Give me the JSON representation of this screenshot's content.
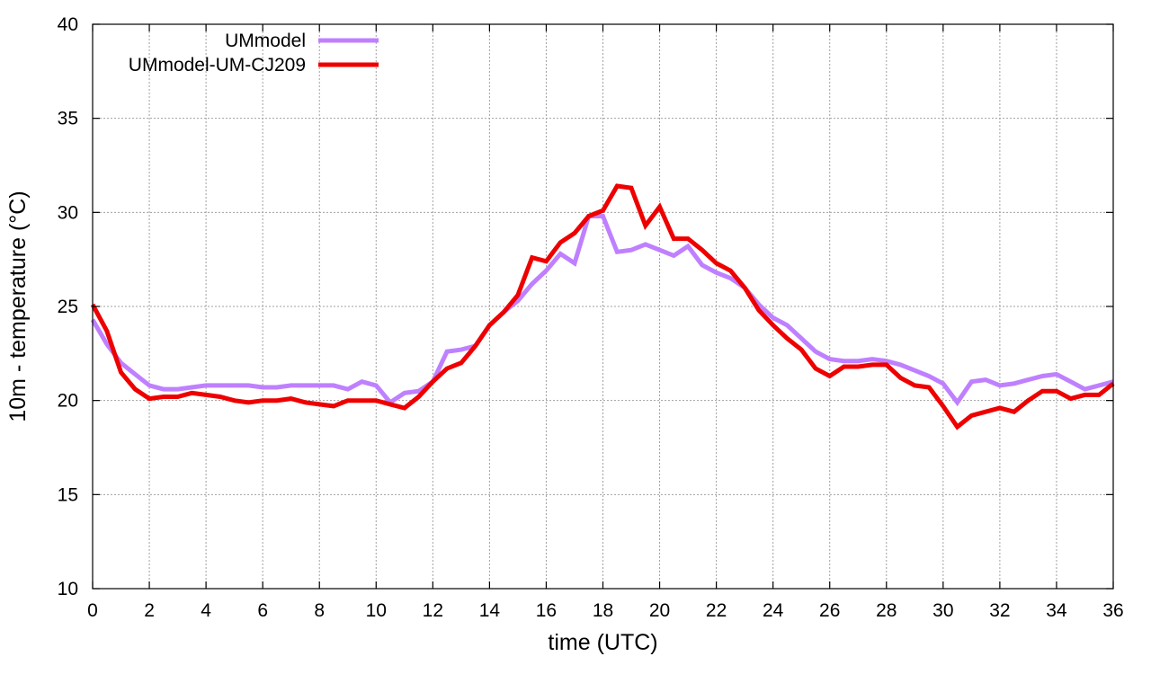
{
  "chart_data": {
    "type": "line",
    "title": "",
    "xlabel": "time (UTC)",
    "ylabel": "10m - temperature (°C)",
    "xlim": [
      0,
      36
    ],
    "ylim": [
      10,
      40
    ],
    "xticks": [
      "0",
      "2",
      "4",
      "6",
      "8",
      "10",
      "12",
      "14",
      "16",
      "18",
      "20",
      "22",
      "24",
      "26",
      "28",
      "30",
      "32",
      "34",
      "36"
    ],
    "yticks": [
      "10",
      "15",
      "20",
      "25",
      "30",
      "35",
      "40"
    ],
    "grid": true,
    "legend_position": "top-left",
    "series": [
      {
        "name": "UMmodel",
        "color": "#bf80ff",
        "x": [
          0,
          0.5,
          1,
          1.5,
          2,
          2.5,
          3,
          3.5,
          4,
          4.5,
          5,
          5.5,
          6,
          6.5,
          7,
          7.5,
          8,
          8.5,
          9,
          9.5,
          10,
          10.5,
          11,
          11.5,
          12,
          12.5,
          13,
          13.5,
          14,
          14.5,
          15,
          15.5,
          16,
          16.5,
          17,
          17.5,
          18,
          18.5,
          19,
          19.5,
          20,
          20.5,
          21,
          21.5,
          22,
          22.5,
          23,
          23.5,
          24,
          24.5,
          25,
          25.5,
          26,
          26.5,
          27,
          27.5,
          28,
          28.5,
          29,
          29.5,
          30,
          30.5,
          31,
          31.5,
          32,
          32.5,
          33,
          33.5,
          34,
          34.5,
          35,
          35.5,
          36
        ],
        "y": [
          24.3,
          23.0,
          22.0,
          21.4,
          20.8,
          20.6,
          20.6,
          20.7,
          20.8,
          20.8,
          20.8,
          20.8,
          20.7,
          20.7,
          20.8,
          20.8,
          20.8,
          20.8,
          20.6,
          21.0,
          20.8,
          19.9,
          20.4,
          20.5,
          21.0,
          22.6,
          22.7,
          22.9,
          24.0,
          24.7,
          25.3,
          26.2,
          26.9,
          27.8,
          27.3,
          29.8,
          29.8,
          27.9,
          28.0,
          28.3,
          28.0,
          27.7,
          28.2,
          27.2,
          26.8,
          26.5,
          26.0,
          25.1,
          24.4,
          24.0,
          23.3,
          22.6,
          22.2,
          22.1,
          22.1,
          22.2,
          22.1,
          21.9,
          21.6,
          21.3,
          20.9,
          19.9,
          21.0,
          21.1,
          20.8,
          20.9,
          21.1,
          21.3,
          21.4,
          21.0,
          20.6,
          20.8,
          21.0
        ]
      },
      {
        "name": "UMmodel-UM-CJ209",
        "color": "#ee0000",
        "x": [
          0,
          0.5,
          1,
          1.5,
          2,
          2.5,
          3,
          3.5,
          4,
          4.5,
          5,
          5.5,
          6,
          6.5,
          7,
          7.5,
          8,
          8.5,
          9,
          9.5,
          10,
          10.5,
          11,
          11.5,
          12,
          12.5,
          13,
          13.5,
          14,
          14.5,
          15,
          15.5,
          16,
          16.5,
          17,
          17.5,
          18,
          18.5,
          19,
          19.5,
          20,
          20.5,
          21,
          21.5,
          22,
          22.5,
          23,
          23.5,
          24,
          24.5,
          25,
          25.5,
          26,
          26.5,
          27,
          27.5,
          28,
          28.5,
          29,
          29.5,
          30,
          30.5,
          31,
          31.5,
          32,
          32.5,
          33,
          33.5,
          34,
          34.5,
          35,
          35.5,
          36
        ],
        "y": [
          25.1,
          23.7,
          21.5,
          20.6,
          20.1,
          20.2,
          20.2,
          20.4,
          20.3,
          20.2,
          20.0,
          19.9,
          20.0,
          20.0,
          20.1,
          19.9,
          19.8,
          19.7,
          20.0,
          20.0,
          20.0,
          19.8,
          19.6,
          20.2,
          21.0,
          21.7,
          22.0,
          22.9,
          24.0,
          24.7,
          25.6,
          27.6,
          27.4,
          28.4,
          28.9,
          29.8,
          30.1,
          31.4,
          31.3,
          29.3,
          30.3,
          28.6,
          28.6,
          28.0,
          27.3,
          26.9,
          26.0,
          24.8,
          24.0,
          23.3,
          22.7,
          21.7,
          21.3,
          21.8,
          21.8,
          21.9,
          21.9,
          21.2,
          20.8,
          20.7,
          19.7,
          18.6,
          19.2,
          19.4,
          19.6,
          19.4,
          20.0,
          20.5,
          20.5,
          20.1,
          20.3,
          20.3,
          20.9
        ]
      }
    ]
  }
}
